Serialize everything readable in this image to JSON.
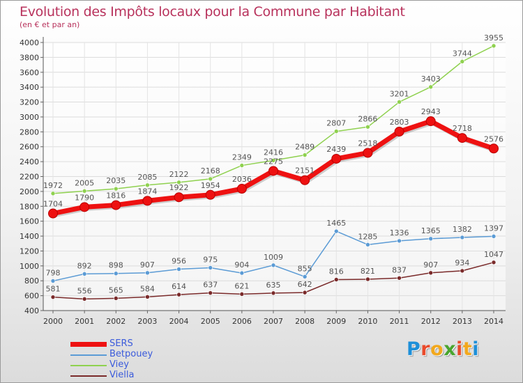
{
  "title": "Evolution des Impôts locaux pour la Commune par Habitant",
  "subtitle": "(en € et par an)",
  "brand": {
    "name": "Proxiti",
    "letters": [
      {
        "char": "P",
        "color": "#1d8fd8"
      },
      {
        "char": "r",
        "color": "#e94b2c"
      },
      {
        "char": "o",
        "color": "#f2a81d"
      },
      {
        "char": "x",
        "color": "#49a52e"
      },
      {
        "char": "i",
        "color": "#e94b2c"
      },
      {
        "char": "t",
        "color": "#f2a81d"
      },
      {
        "char": "i",
        "color": "#1d8fd8"
      }
    ]
  },
  "chart_data": {
    "type": "line",
    "title": "Evolution des Impôts locaux pour la Commune par Habitant",
    "subtitle": "(en € et par an)",
    "xlabel": "",
    "ylabel": "",
    "categories": [
      "2000",
      "2001",
      "2002",
      "2003",
      "2004",
      "2005",
      "2006",
      "2007",
      "2008",
      "2009",
      "2010",
      "2011",
      "2012",
      "2013",
      "2014"
    ],
    "ylim": [
      400,
      4000
    ],
    "yticks": [
      400,
      600,
      800,
      1000,
      1200,
      1400,
      1600,
      1800,
      2000,
      2200,
      2400,
      2600,
      2800,
      3000,
      3200,
      3400,
      3600,
      3800,
      4000
    ],
    "grid": true,
    "legend_position": "bottom-left",
    "series": [
      {
        "name": "Viella",
        "color": "#7a2a2a",
        "label_color": "#555555",
        "values": [
          581,
          556,
          565,
          584,
          614,
          637,
          621,
          635,
          642,
          816,
          821,
          837,
          907,
          934,
          1047
        ]
      },
      {
        "name": "Betpouey",
        "color": "#5b9bd5",
        "label_color": "#555555",
        "values": [
          798,
          892,
          898,
          907,
          956,
          975,
          904,
          1009,
          855,
          1465,
          1285,
          1336,
          1365,
          1382,
          1397
        ]
      },
      {
        "name": "Viey",
        "color": "#8fd14f",
        "label_color": "#555555",
        "values": [
          1972,
          2005,
          2035,
          2085,
          2122,
          2168,
          2349,
          2416,
          2489,
          2807,
          2866,
          3201,
          3403,
          3744,
          3955
        ]
      },
      {
        "name": "SERS",
        "color": "#ee1111",
        "label_color": "#555555",
        "values": [
          1704,
          1790,
          1816,
          1874,
          1922,
          1954,
          2036,
          2275,
          2151,
          2439,
          2518,
          2803,
          2943,
          2718,
          2576
        ]
      }
    ],
    "legend": [
      {
        "name": "SERS",
        "color": "#ee1111",
        "text_color": "#3b5bdb"
      },
      {
        "name": "Betpouey",
        "color": "#5b9bd5",
        "text_color": "#3b5bdb"
      },
      {
        "name": "Viey",
        "color": "#8fd14f",
        "text_color": "#3b5bdb"
      },
      {
        "name": "Viella",
        "color": "#7a2a2a",
        "text_color": "#3b5bdb"
      }
    ]
  }
}
